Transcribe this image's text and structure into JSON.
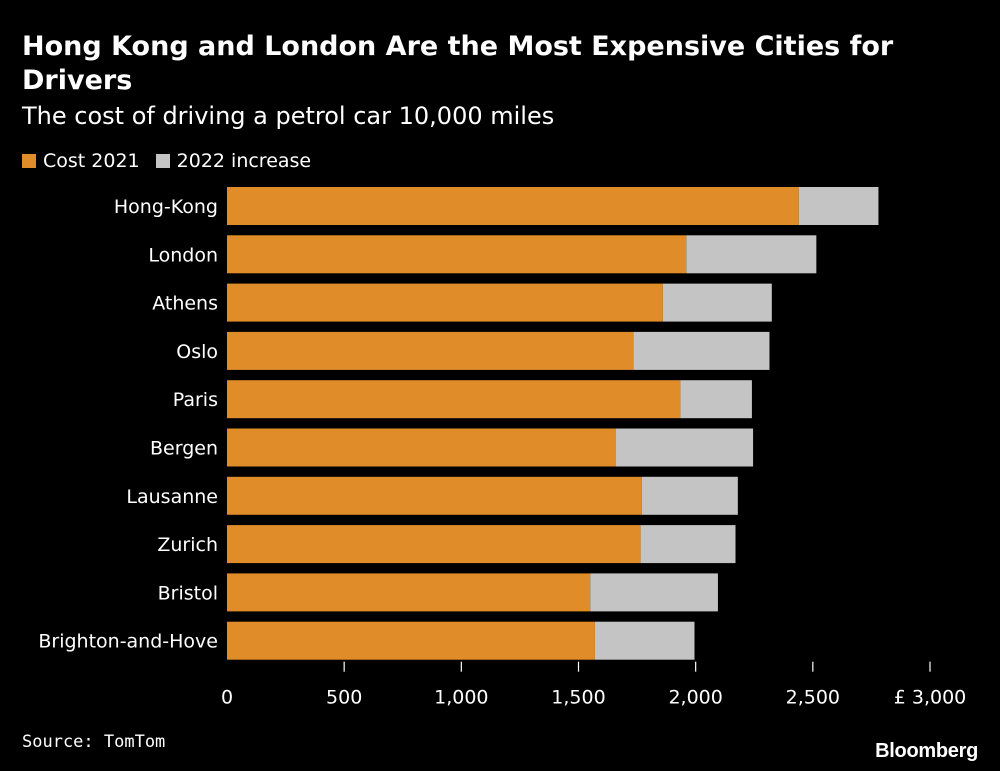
{
  "chart_data": {
    "type": "bar",
    "orientation": "horizontal",
    "stacked": true,
    "title": "Hong Kong and London Are the Most Expensive Cities for Drivers",
    "subtitle": "The cost of driving a petrol car 10,000 miles",
    "categories": [
      "Hong-Kong",
      "London",
      "Athens",
      "Oslo",
      "Paris",
      "Bergen",
      "Lausanne",
      "Zurich",
      "Bristol",
      "Brighton-and-Hove"
    ],
    "series": [
      {
        "name": "Cost 2021",
        "color": "#e08c29",
        "values": [
          2440,
          1960,
          1860,
          1735,
          1935,
          1660,
          1770,
          1765,
          1550,
          1570
        ]
      },
      {
        "name": "2022 increase",
        "color": "#c4c4c4",
        "values": [
          340,
          555,
          465,
          580,
          305,
          585,
          410,
          405,
          545,
          425
        ]
      }
    ],
    "x_ticks": [
      0,
      500,
      1000,
      1500,
      2000,
      2500,
      3000
    ],
    "x_tick_labels": [
      "0",
      "500",
      "1,000",
      "1,500",
      "2,000",
      "2,500",
      "£ 3,000"
    ],
    "xlim": [
      0,
      3000
    ],
    "xlabel": "",
    "ylabel": "",
    "legend_position": "top-left",
    "grid": false
  },
  "source": "Source: TomTom",
  "brand": "Bloomberg"
}
